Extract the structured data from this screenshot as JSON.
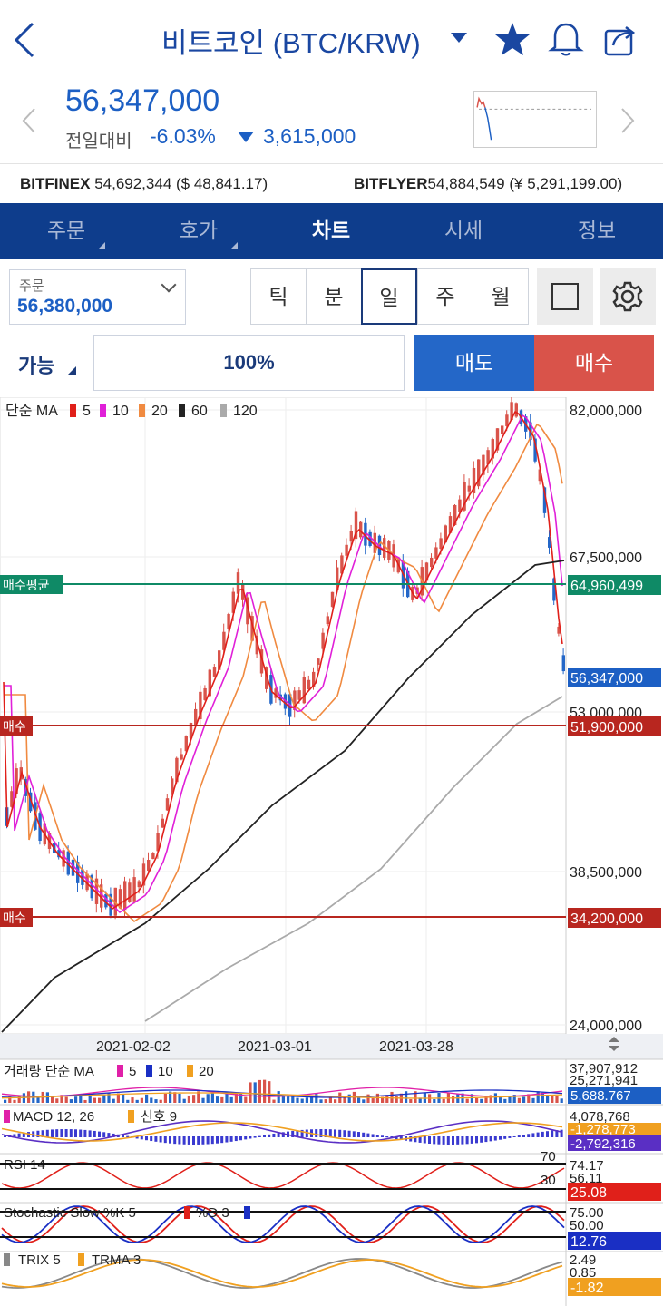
{
  "header": {
    "title": "비트코인 (BTC/KRW)"
  },
  "price": {
    "current": "56,347,000",
    "change_label": "전일대비",
    "change_pct": "-6.03%",
    "change_abs": "3,615,000"
  },
  "exchanges": [
    {
      "name": "BITFINEX",
      "value": "54,692,344 ($ 48,841.17)"
    },
    {
      "name": "BITFLYER",
      "value": "54,884,549 (¥ 5,291,199.00)"
    }
  ],
  "tabs": [
    {
      "label": "주문",
      "active": false,
      "has_menu": true
    },
    {
      "label": "호가",
      "active": false,
      "has_menu": true
    },
    {
      "label": "차트",
      "active": true,
      "has_menu": false
    },
    {
      "label": "시세",
      "active": false,
      "has_menu": false
    },
    {
      "label": "정보",
      "active": false,
      "has_menu": false
    }
  ],
  "order": {
    "label": "주문",
    "value": "56,380,000"
  },
  "periods": [
    {
      "label": "틱",
      "active": false
    },
    {
      "label": "분",
      "active": false
    },
    {
      "label": "일",
      "active": true
    },
    {
      "label": "주",
      "active": false
    },
    {
      "label": "월",
      "active": false
    }
  ],
  "trade": {
    "available_label": "가능",
    "percent": "100%",
    "sell_label": "매도",
    "buy_label": "매수"
  },
  "colors": {
    "brand": "#0e3d8c",
    "down": "#1c5fc4",
    "up": "#d9534a"
  },
  "chart": {
    "legend": {
      "prefix": "단순 MA",
      "items": [
        {
          "label": "5",
          "color": "#e0201a"
        },
        {
          "label": "10",
          "color": "#e020d8"
        },
        {
          "label": "20",
          "color": "#f08a40"
        },
        {
          "label": "60",
          "color": "#222222"
        },
        {
          "label": "120",
          "color": "#aaaaaa"
        }
      ]
    },
    "y_ticks": [
      "82,000,000",
      "67,500,000",
      "53,000,000",
      "38,500,000",
      "24,000,000"
    ],
    "x_ticks": [
      "2021-02-02",
      "2021-03-01",
      "2021-03-28"
    ],
    "price_tags": [
      {
        "label": "매수평균",
        "value": "64,960,499",
        "color": "#0f8a66"
      },
      {
        "label": "",
        "value": "56,347,000",
        "color": "#1c5fc4"
      },
      {
        "label": "매수",
        "value": "51,900,000",
        "color": "#b8261f"
      },
      {
        "label": "매수",
        "value": "34,200,000",
        "color": "#b8261f"
      }
    ]
  },
  "indicators": {
    "volume": {
      "legend": "거래량 단순 MA",
      "items": [
        {
          "label": "5",
          "color": "#e020a8"
        },
        {
          "label": "10",
          "color": "#1a2fc4"
        },
        {
          "label": "20",
          "color": "#f0a020"
        }
      ],
      "values": [
        "37,907,912",
        "25,271,941",
        "5,688.767"
      ]
    },
    "macd": {
      "legend": "MACD 12, 26",
      "signal": "신호 9",
      "values": [
        "4,078,768",
        "-1,278,773",
        "-2,792,316"
      ]
    },
    "rsi": {
      "legend": "RSI 14",
      "levels": [
        "70",
        "30"
      ],
      "values": [
        "74.17",
        "56.11",
        "25.08"
      ]
    },
    "stochastic": {
      "legend": "Stochastic Slow %K 5",
      "d_label": "%D 3",
      "values": [
        "75.00",
        "50.00",
        "12.76"
      ]
    },
    "trix": {
      "legend": "TRIX 5",
      "trma": "TRMA 3",
      "values": [
        "2.49",
        "0.85",
        "-1.82"
      ]
    }
  }
}
